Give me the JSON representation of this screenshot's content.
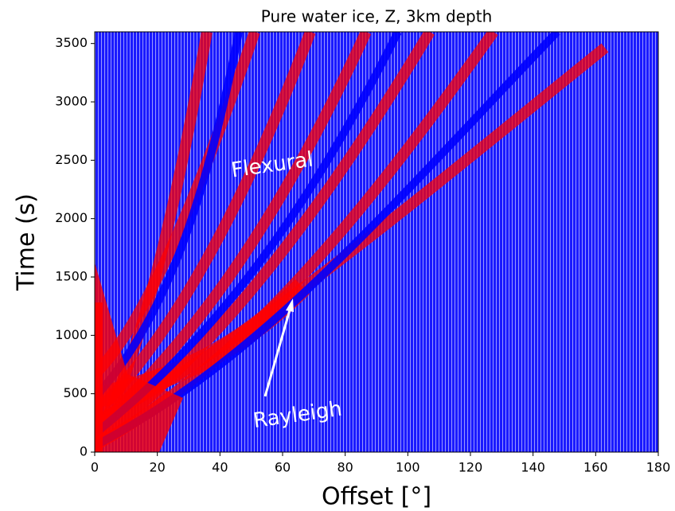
{
  "chart_data": {
    "type": "seismogram",
    "title": "Pure water ice, Z, 3km depth",
    "x_label": "Offset [°]",
    "y_label": "Time (s)",
    "xlim": [
      0,
      180
    ],
    "xticks": [
      0,
      20,
      40,
      60,
      80,
      100,
      120,
      140,
      160,
      180
    ],
    "ylim": [
      0,
      3600
    ],
    "yticks": [
      0,
      500,
      1000,
      1500,
      2000,
      2500,
      3000,
      3500
    ],
    "annotations": [
      "Flexural",
      "Rayleigh"
    ],
    "colors": [
      "#0000ff",
      "#ff0000"
    ]
  }
}
